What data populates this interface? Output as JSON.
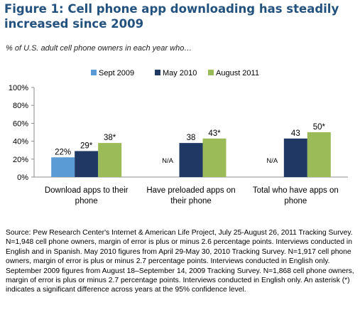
{
  "title": "Figure 1: Cell phone app downloading has steadily increased since 2009",
  "subtitle": "% of U.S. adult cell phone owners in each year who…",
  "source_note": "Source: Pew Research Center's Internet & American Life Project, July 25-August 26, 2011 Tracking Survey. N=1,948 cell phone owners, margin of error is plus or minus 2.6 percentage points. Interviews conducted in English and in Spanish. May 2010 figures from April 29-May 30, 2010 Tracking Survey. N=1,917 cell phone owners, margin of error is plus or minus 2.7 percentage points. Interviews conducted in English only. September 2009 figures from August 18–September 14, 2009 Tracking Survey. N=1,868 cell phone owners, margin of error is plus or minus 2.7 percentage points. Interviews conducted in English only. An asterisk (*) indicates a significant difference across years at the 95% confidence level.",
  "na_label": "N/A",
  "chart_data": {
    "type": "bar",
    "categories": [
      [
        "Download apps to their",
        "phone"
      ],
      [
        "Have preloaded apps on",
        "their phone"
      ],
      [
        "Total who have apps on",
        "phone"
      ]
    ],
    "series": [
      {
        "name": "Sept 2009",
        "color": "#5b9bd5",
        "values": [
          22,
          null,
          null
        ],
        "labels": [
          "22%",
          "",
          ""
        ]
      },
      {
        "name": "May 2010",
        "color": "#1f3864",
        "values": [
          29,
          38,
          43
        ],
        "labels": [
          "29*",
          "38",
          "43"
        ]
      },
      {
        "name": "August 2011",
        "color": "#9bbb59",
        "values": [
          38,
          43,
          50
        ],
        "labels": [
          "38*",
          "43*",
          "50*"
        ]
      }
    ],
    "yticks": [
      "0%",
      "20%",
      "40%",
      "60%",
      "80%",
      "100%"
    ],
    "ylim": [
      0,
      100
    ],
    "legend": "top-center",
    "grid": false
  }
}
